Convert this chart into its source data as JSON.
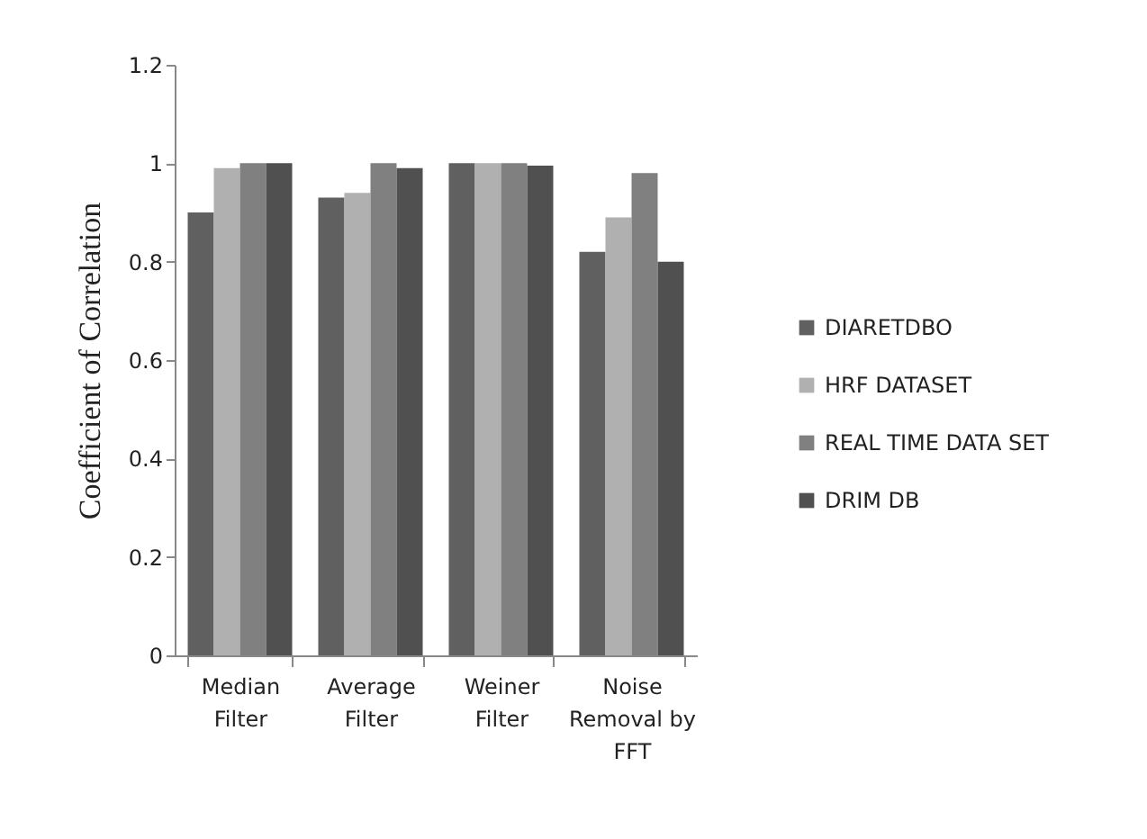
{
  "chart_data": {
    "type": "bar",
    "ylabel": "Coefficient  of Correlation",
    "categories": [
      "Median Filter",
      "Average Filter",
      "Weiner Filter",
      "Noise Removal by FFT"
    ],
    "series": [
      {
        "name": "DIARETDBO",
        "color": "#606060",
        "values": [
          0.9,
          0.93,
          1,
          0.82
        ]
      },
      {
        "name": "HRF DATASET",
        "color": "#b0b0b0",
        "values": [
          0.99,
          0.94,
          1,
          0.89
        ]
      },
      {
        "name": "REAL TIME DATA SET",
        "color": "#808080",
        "values": [
          1,
          1,
          1,
          0.98
        ]
      },
      {
        "name": "DRIM DB",
        "color": "#505050",
        "values": [
          1,
          0.99,
          0.995,
          0.8
        ]
      }
    ],
    "ylim": [
      0,
      1.2
    ],
    "yticks": [
      0,
      0.2,
      0.4,
      0.6,
      0.8,
      1,
      1.2
    ],
    "grid": false,
    "legend": "right"
  }
}
